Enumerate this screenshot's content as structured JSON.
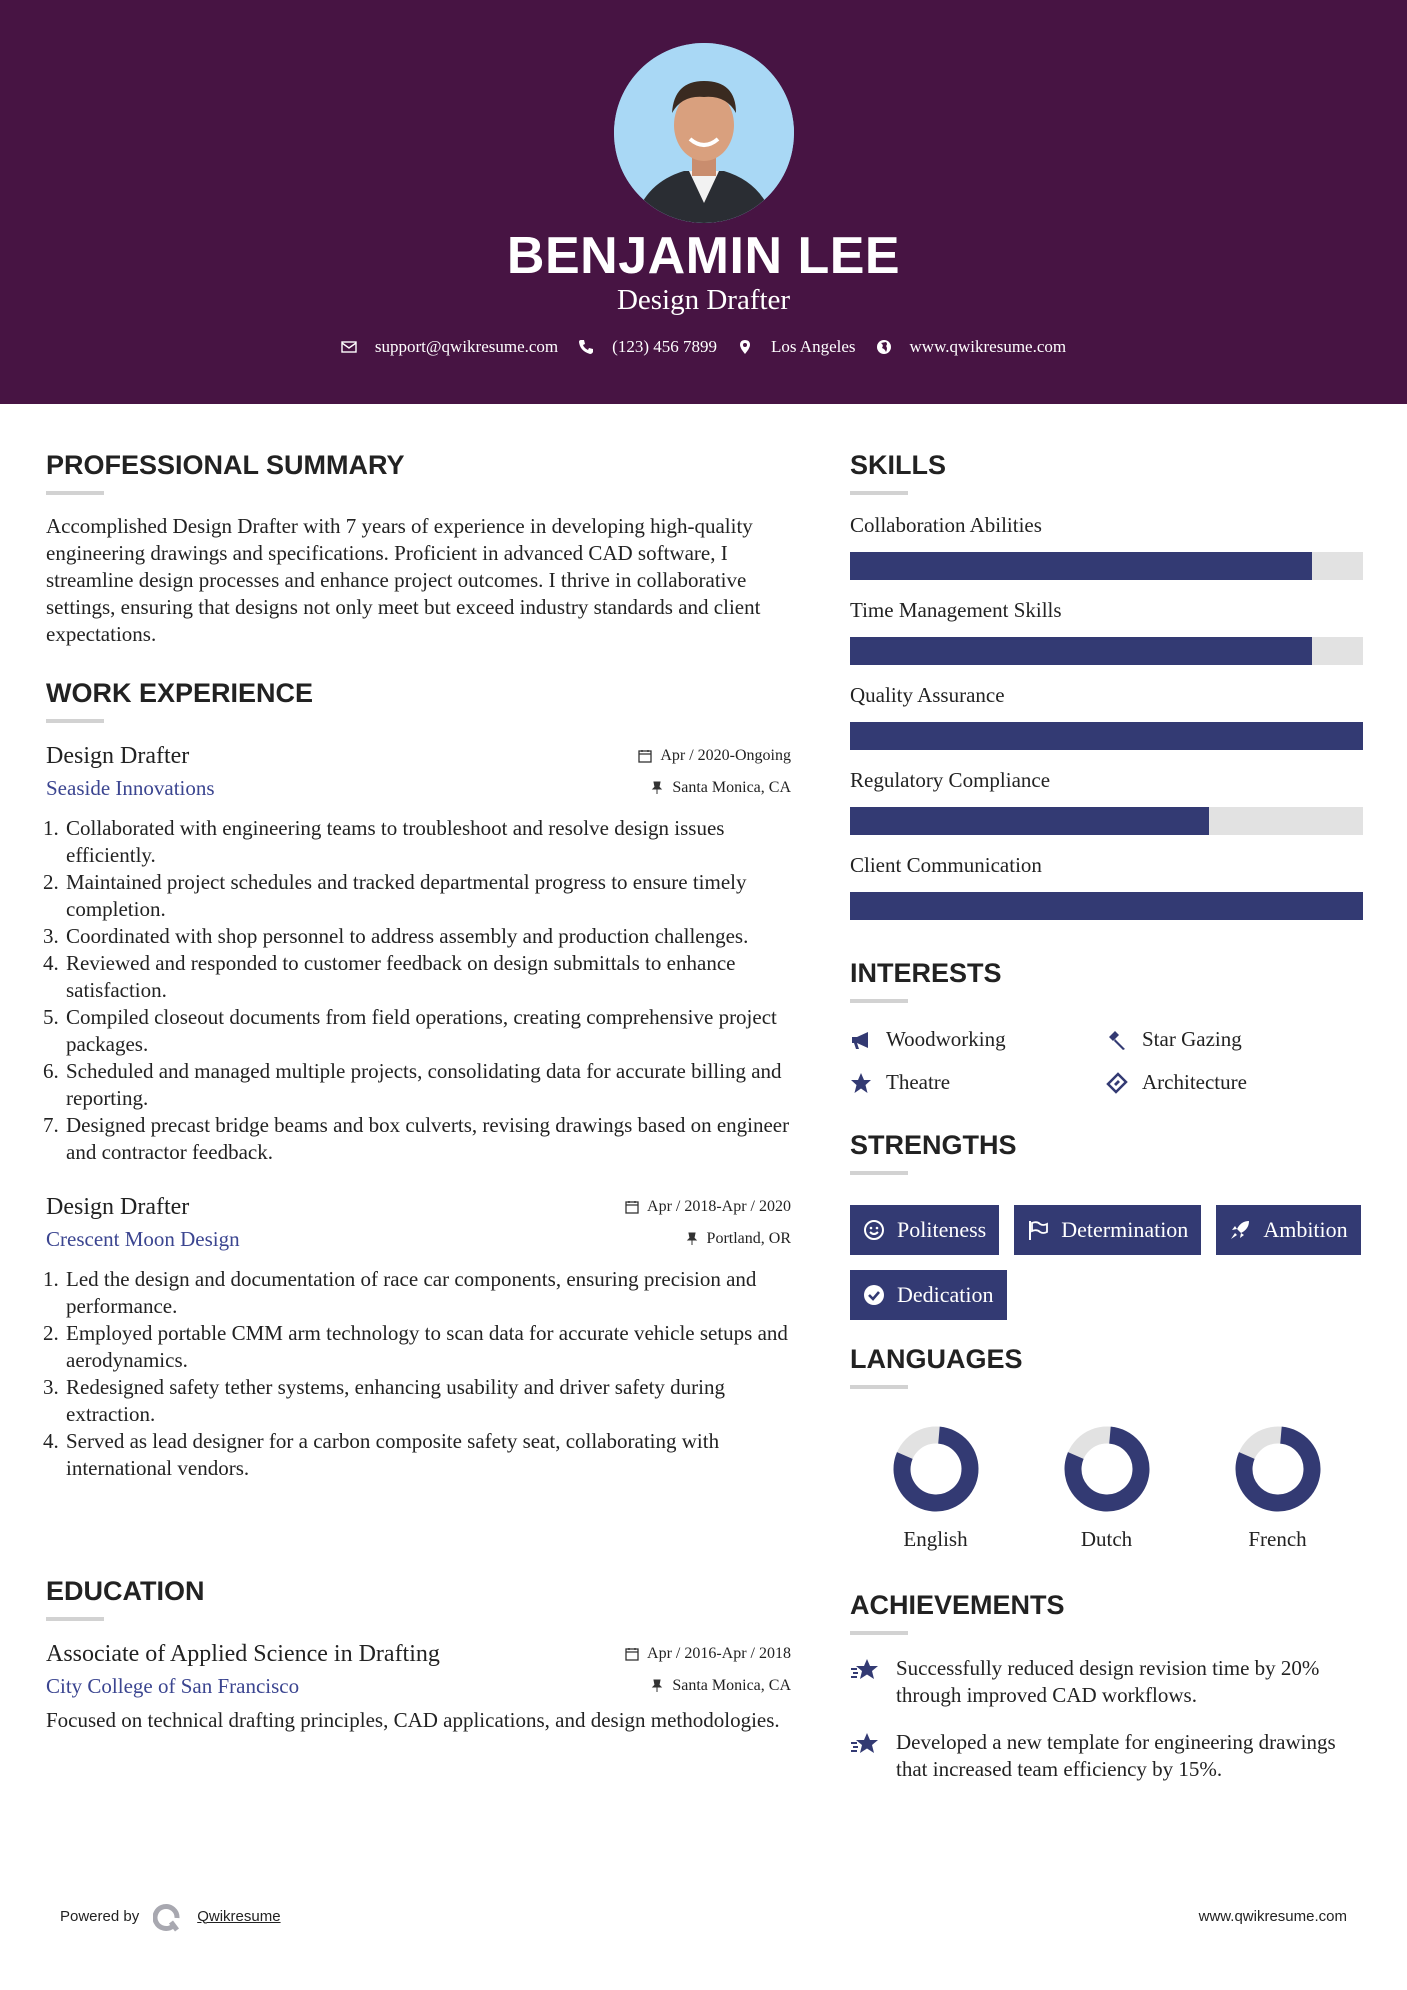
{
  "header": {
    "name": "BENJAMIN LEE",
    "title": "Design Drafter",
    "contacts": [
      {
        "icon": "envelope-icon",
        "text": "support@qwikresume.com"
      },
      {
        "icon": "phone-icon",
        "text": "(123) 456 7899"
      },
      {
        "icon": "map-pin-icon",
        "text": "Los Angeles"
      },
      {
        "icon": "globe-icon",
        "text": "www.qwikresume.com"
      }
    ]
  },
  "summary": {
    "title": "PROFESSIONAL SUMMARY",
    "text": "Accomplished Design Drafter with 7 years of experience in developing high-quality engineering drawings and specifications. Proficient in advanced CAD software, I streamline design processes and enhance project outcomes. I thrive in collaborative settings, ensuring that designs not only meet but exceed industry standards and client expectations."
  },
  "work": {
    "title": "WORK EXPERIENCE",
    "jobs": [
      {
        "title": "Design Drafter",
        "company": "Seaside Innovations",
        "date": "Apr / 2020-Ongoing",
        "location": "Santa Monica, CA",
        "items": [
          "Collaborated with engineering teams to troubleshoot and resolve design issues efficiently.",
          "Maintained project schedules and tracked departmental progress to ensure timely completion.",
          "Coordinated with shop personnel to address assembly and production challenges.",
          "Reviewed and responded to customer feedback on design submittals to enhance satisfaction.",
          "Compiled closeout documents from field operations, creating comprehensive project packages.",
          "Scheduled and managed multiple projects, consolidating data for accurate billing and reporting.",
          "Designed precast bridge beams and box culverts, revising drawings based on engineer and contractor feedback."
        ]
      },
      {
        "title": "Design Drafter",
        "company": "Crescent Moon Design",
        "date": "Apr / 2018-Apr / 2020",
        "location": "Portland, OR",
        "items": [
          "Led the design and documentation of race car components, ensuring precision and performance.",
          "Employed portable CMM arm technology to scan data for accurate vehicle setups and aerodynamics.",
          "Redesigned safety tether systems, enhancing usability and driver safety during extraction.",
          "Served as lead designer for a carbon composite safety seat, collaborating with international vendors."
        ]
      }
    ]
  },
  "education": {
    "title": "EDUCATION",
    "degree": "Associate of Applied Science in Drafting",
    "school": "City College of San Francisco",
    "date": "Apr / 2016-Apr / 2018",
    "location": "Santa Monica, CA",
    "text": "Focused on technical drafting principles, CAD applications, and design methodologies."
  },
  "skills": {
    "title": "SKILLS",
    "items": [
      {
        "label": "Collaboration Abilities",
        "level": 0.9
      },
      {
        "label": "Time Management Skills",
        "level": 0.9
      },
      {
        "label": "Quality Assurance",
        "level": 1.0
      },
      {
        "label": "Regulatory Compliance",
        "level": 0.7
      },
      {
        "label": "Client Communication",
        "level": 1.0
      }
    ]
  },
  "interests": {
    "title": "INTERESTS",
    "items": [
      {
        "icon": "bullhorn-icon",
        "label": "Woodworking"
      },
      {
        "icon": "gavel-icon",
        "label": "Star Gazing"
      },
      {
        "icon": "star-icon",
        "label": "Theatre"
      },
      {
        "icon": "ticket-icon",
        "label": "Architecture"
      }
    ]
  },
  "strengths": {
    "title": "STRENGTHS",
    "items": [
      {
        "icon": "smile-icon",
        "label": "Politeness"
      },
      {
        "icon": "flag-icon",
        "label": "Determination"
      },
      {
        "icon": "rocket-icon",
        "label": "Ambition"
      },
      {
        "icon": "check-circle-icon",
        "label": "Dedication"
      }
    ]
  },
  "languages": {
    "title": "LANGUAGES",
    "items": [
      {
        "label": "English",
        "level": 0.8
      },
      {
        "label": "Dutch",
        "level": 0.8
      },
      {
        "label": "French",
        "level": 0.8
      }
    ]
  },
  "achievements": {
    "title": "ACHIEVEMENTS",
    "items": [
      "Successfully reduced design revision time by 20% through improved CAD workflows.",
      "Developed a new template for engineering drawings that increased team efficiency by 15%."
    ]
  },
  "footer": {
    "powered_by": "Powered by",
    "brand": "Qwikresume",
    "site": "www.qwikresume.com"
  },
  "colors": {
    "header": "#471443",
    "accent": "#333a73",
    "link": "#3b4590",
    "track": "#e2e2e2"
  }
}
